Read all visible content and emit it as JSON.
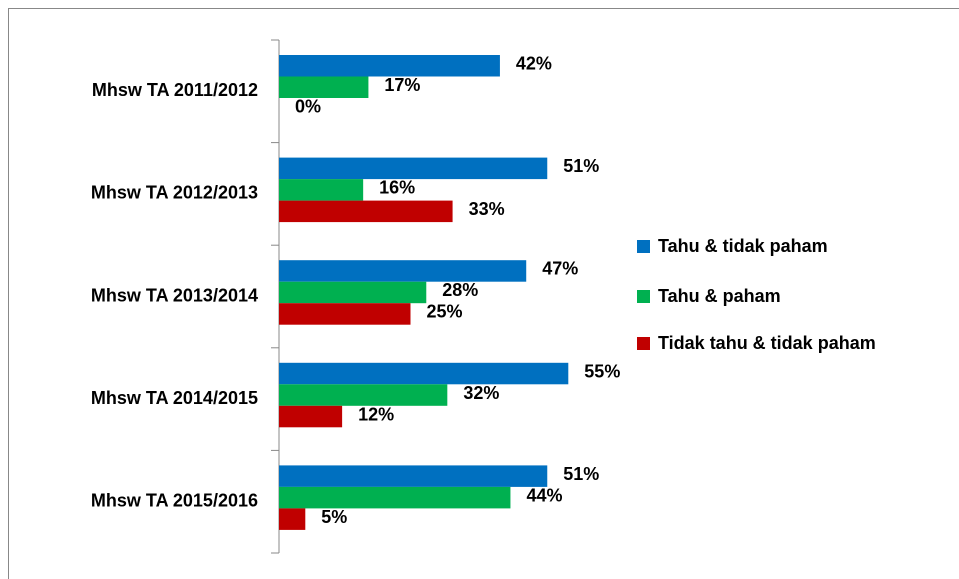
{
  "chart_data": {
    "type": "bar",
    "orientation": "horizontal",
    "categories": [
      "Mhsw TA 2011/2012",
      "Mhsw TA 2012/2013",
      "Mhsw TA 2013/2014",
      "Mhsw TA 2014/2015",
      "Mhsw TA 2015/2016"
    ],
    "series": [
      {
        "name": "Tahu & tidak paham",
        "color": "#0070c0",
        "values": [
          42,
          51,
          47,
          55,
          51
        ],
        "value_labels": [
          "42%",
          "51%",
          "47%",
          "55%",
          "51%"
        ]
      },
      {
        "name": "Tahu & paham",
        "color": "#00b050",
        "values": [
          17,
          16,
          28,
          32,
          44
        ],
        "value_labels": [
          "17%",
          "16%",
          "28%",
          "32%",
          "44%"
        ]
      },
      {
        "name": "Tidak tahu & tidak paham",
        "color": "#c00000",
        "values": [
          0,
          33,
          25,
          12,
          5
        ],
        "value_labels": [
          "0%",
          "33%",
          "25%",
          "12%",
          "5%"
        ]
      }
    ],
    "legend": "right"
  }
}
